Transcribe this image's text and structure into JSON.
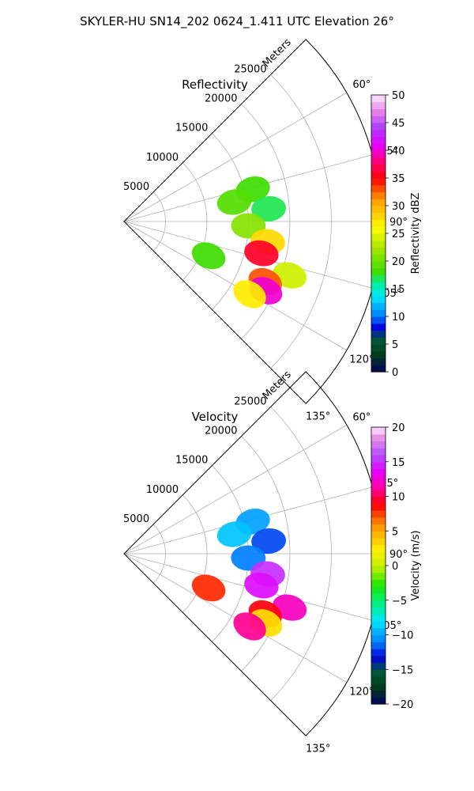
{
  "suptitle": "SKYLER-HU  SN14_202  0624_1.411 UTC Elevation 26°",
  "chart_data": [
    {
      "type": "heatmap",
      "projection": "polar-sector",
      "title": "Reflectivity",
      "radial_label": "Meters",
      "radial_ticks": [
        5000,
        10000,
        15000,
        20000,
        25000
      ],
      "radial_range": [
        0,
        31000
      ],
      "angle_ticks": [
        "60°",
        "75°",
        "90°",
        "105°",
        "120°",
        "135°"
      ],
      "angle_range_deg": [
        45,
        135
      ],
      "colorbar": {
        "label": "Reflectivity dBZ",
        "range": [
          0,
          50
        ],
        "ticks": [
          0,
          5,
          10,
          15,
          20,
          25,
          30,
          35,
          40,
          45,
          50
        ]
      },
      "echoes": [
        {
          "az": 76,
          "r": 16000,
          "value": 18
        },
        {
          "az": 80,
          "r": 13500,
          "value": 19
        },
        {
          "az": 85,
          "r": 17500,
          "value": 17
        },
        {
          "az": 92,
          "r": 15000,
          "value": 21
        },
        {
          "az": 98,
          "r": 17500,
          "value": 28
        },
        {
          "az": 103,
          "r": 17000,
          "value": 36
        },
        {
          "az": 108,
          "r": 21000,
          "value": 24
        },
        {
          "az": 113,
          "r": 18500,
          "value": 33
        },
        {
          "az": 116,
          "r": 19000,
          "value": 40
        },
        {
          "az": 120,
          "r": 17500,
          "value": 27
        },
        {
          "az": 112,
          "r": 11000,
          "value": 18
        }
      ]
    },
    {
      "type": "heatmap",
      "projection": "polar-sector",
      "title": "Velocity",
      "radial_label": "Meters",
      "radial_ticks": [
        5000,
        10000,
        15000,
        20000,
        25000
      ],
      "radial_range": [
        0,
        31000
      ],
      "angle_ticks": [
        "60°",
        "75°",
        "90°",
        "105°",
        "120°",
        "135°"
      ],
      "angle_range_deg": [
        45,
        135
      ],
      "colorbar": {
        "label": "Velocity (m/s)",
        "range": [
          -20,
          20
        ],
        "ticks": [
          -20,
          -15,
          -10,
          -5,
          0,
          5,
          10,
          15,
          20
        ]
      },
      "echoes": [
        {
          "az": 76,
          "r": 16000,
          "value": -10
        },
        {
          "az": 80,
          "r": 13500,
          "value": -9
        },
        {
          "az": 85,
          "r": 17500,
          "value": -12
        },
        {
          "az": 92,
          "r": 15000,
          "value": -11
        },
        {
          "az": 98,
          "r": 17500,
          "value": 15
        },
        {
          "az": 103,
          "r": 17000,
          "value": 14
        },
        {
          "az": 108,
          "r": 21000,
          "value": 12
        },
        {
          "az": 113,
          "r": 18500,
          "value": 9
        },
        {
          "az": 116,
          "r": 19000,
          "value": 3
        },
        {
          "az": 120,
          "r": 17500,
          "value": 11
        },
        {
          "az": 112,
          "r": 11000,
          "value": 8
        }
      ]
    }
  ]
}
